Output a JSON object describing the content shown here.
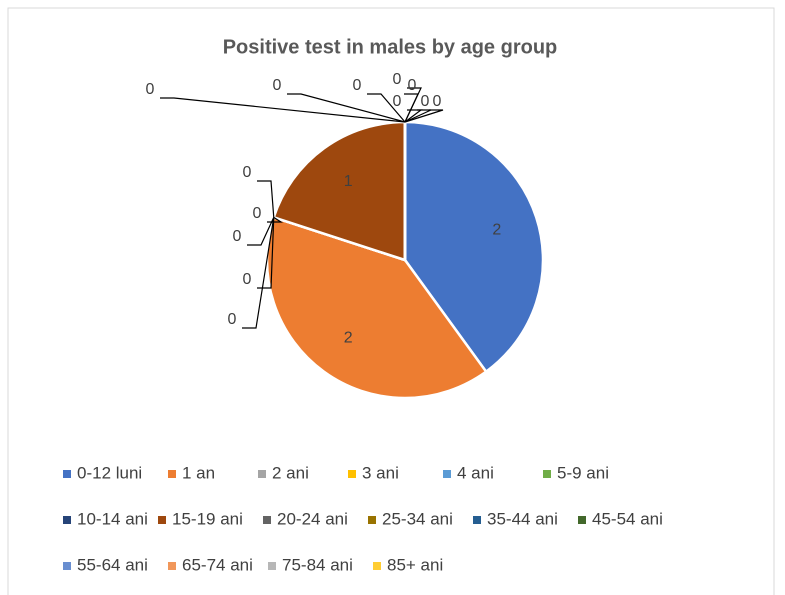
{
  "chart_data": {
    "type": "pie",
    "title": "Positive test in males by age group",
    "categories": [
      "0-12 luni",
      "1 an",
      "2 ani",
      "3 ani",
      "4 ani",
      "5-9 ani",
      "10-14 ani",
      "15-19 ani",
      "20-24 ani",
      "25-34 ani",
      "35-44 ani",
      "45-54 ani",
      "55-64 ani",
      "65-74 ani",
      "75-84 ani",
      "85+ ani"
    ],
    "values": [
      2,
      2,
      0,
      0,
      0,
      0,
      0,
      1,
      0,
      0,
      0,
      0,
      0,
      0,
      0,
      0
    ],
    "colors": [
      "#4472C4",
      "#ED7D31",
      "#A5A5A5",
      "#FFC000",
      "#5B9BD5",
      "#70AD47",
      "#264478",
      "#9E480E",
      "#636363",
      "#997300",
      "#255E91",
      "#43682B",
      "#698ED0",
      "#F1975A",
      "#B7B7B7",
      "#FFCD33"
    ],
    "legend": "bottom"
  }
}
